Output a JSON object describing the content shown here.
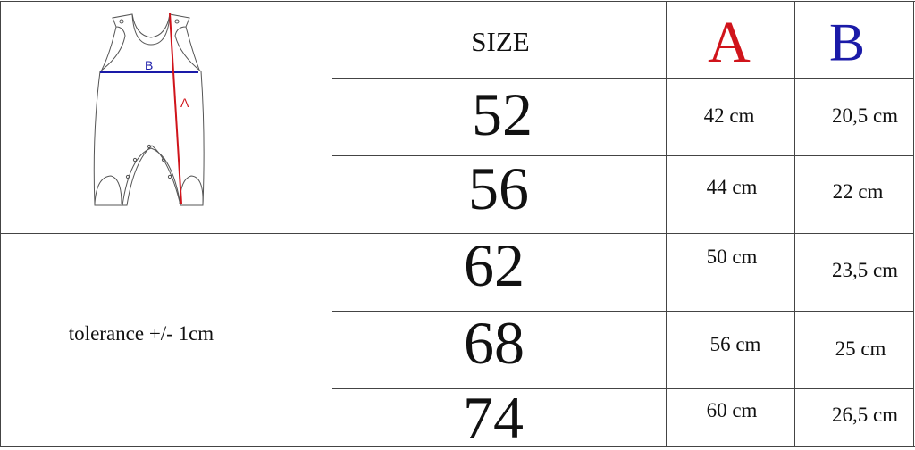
{
  "diagram": {
    "label_a": "A",
    "label_b": "B",
    "color_a": "#d0141b",
    "color_b": "#1a1aa8"
  },
  "note": "tolerance +/- 1cm",
  "header": {
    "size": "SIZE",
    "a": "A",
    "b": "B"
  },
  "rows": [
    {
      "size": "52",
      "a": "42 cm",
      "b": "20,5 cm"
    },
    {
      "size": "56",
      "a": "44 cm",
      "b": "22 cm"
    },
    {
      "size": "62",
      "a": "50 cm",
      "b": "23,5 cm"
    },
    {
      "size": "68",
      "a": "56 cm",
      "b": "25 cm"
    },
    {
      "size": "74",
      "a": "60 cm",
      "b": "26,5 cm"
    }
  ]
}
